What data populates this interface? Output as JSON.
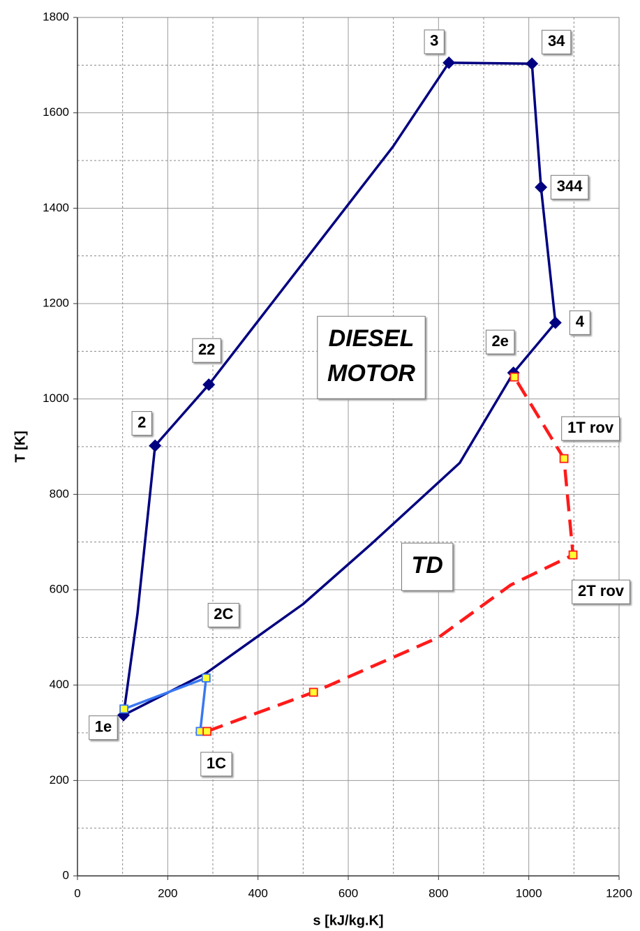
{
  "chart_data": {
    "type": "line",
    "xlabel": "s [kJ/kg.K]",
    "ylabel": "T [K]",
    "xlim": [
      0,
      1200
    ],
    "ylim": [
      0,
      1800
    ],
    "xticks": [
      0,
      200,
      400,
      600,
      800,
      1000,
      1200
    ],
    "yticks": [
      0,
      200,
      400,
      600,
      800,
      1000,
      1200,
      1400,
      1600,
      1800
    ],
    "xminorticks": [
      100,
      300,
      500,
      700,
      900,
      1100
    ],
    "yminorticks": [
      100,
      300,
      500,
      700,
      900,
      1100,
      1300,
      1500,
      1700
    ],
    "grid": true,
    "series": [
      {
        "color": "#000080",
        "marker": "diamond",
        "dash": false,
        "closed": true,
        "x": [
          102,
          133,
          172,
          291,
          699,
          823,
          1007,
          1027,
          1059,
          966,
          847,
          650,
          500,
          285
        ],
        "y": [
          337,
          550,
          902,
          1030,
          1529,
          1705,
          1703,
          1444,
          1160,
          1055,
          866,
          695,
          570,
          425
        ],
        "markers": [
          true,
          false,
          true,
          true,
          false,
          true,
          true,
          true,
          true,
          true,
          false,
          false,
          false,
          false
        ],
        "labels": [
          "1e",
          null,
          "2",
          "22",
          null,
          "3",
          "34",
          "344",
          "4",
          "2e",
          null,
          null,
          null,
          null
        ]
      },
      {
        "color": "#3a78f2",
        "marker": "square",
        "dash": false,
        "closed": false,
        "x": [
          103,
          285,
          272
        ],
        "y": [
          350,
          415,
          303
        ],
        "markers": [
          true,
          true,
          true
        ],
        "labels": [
          null,
          "2C",
          "1C"
        ]
      },
      {
        "color": "#ff1a1a",
        "marker": "square",
        "dash": true,
        "closed": false,
        "x": [
          287,
          523,
          800,
          960,
          1098,
          1078,
          968
        ],
        "y": [
          303,
          385,
          500,
          610,
          673,
          875,
          1046
        ],
        "markers": [
          true,
          true,
          false,
          false,
          true,
          true,
          true
        ],
        "labels": [
          null,
          null,
          null,
          null,
          "2T rov",
          "1T rov",
          null
        ]
      }
    ],
    "annotations": [
      {
        "lines": [
          "DIESEL",
          "MOTOR"
        ],
        "x": 651,
        "y": 1087
      },
      {
        "lines": [
          "TD"
        ],
        "x": 775,
        "y": 648
      }
    ]
  }
}
